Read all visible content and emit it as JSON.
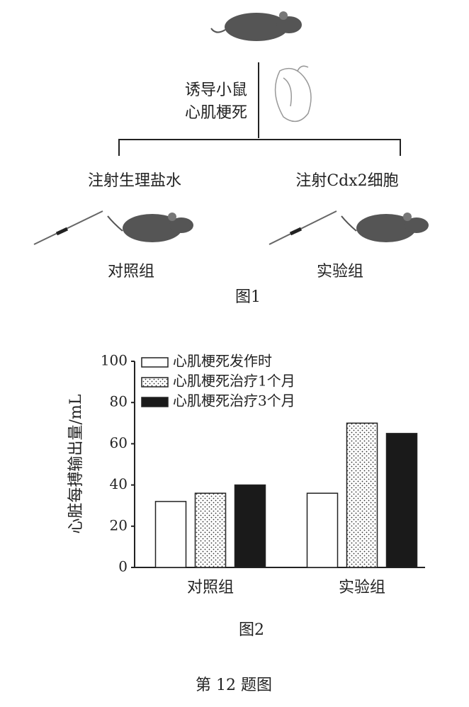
{
  "figure1": {
    "induce": [
      "诱导小鼠",
      "心肌梗死"
    ],
    "branches": [
      {
        "label": "注射生理盐水",
        "group": "对照组"
      },
      {
        "label": "注射Cdx2细胞",
        "group": "实验组"
      }
    ],
    "caption": "图1"
  },
  "chart_data": {
    "type": "bar",
    "y_label": "心脏每搏输出量/mL",
    "categories": [
      "对照组",
      "实验组"
    ],
    "series": [
      {
        "name": "心肌梗死发作时",
        "color": "#ffffff",
        "values": [
          32,
          36
        ]
      },
      {
        "name": "心肌梗死治疗1个月",
        "color": "#ffffff",
        "pattern": "dots",
        "values": [
          36,
          70
        ]
      },
      {
        "name": "心肌梗死治疗3个月",
        "color": "#1a1a1a",
        "values": [
          40,
          65
        ]
      }
    ],
    "ylim": [
      0,
      100
    ],
    "yticks": [
      0,
      20,
      40,
      60,
      80,
      100
    ],
    "legend": "upper-left",
    "caption": "图2"
  },
  "footer": "第 12 题图"
}
